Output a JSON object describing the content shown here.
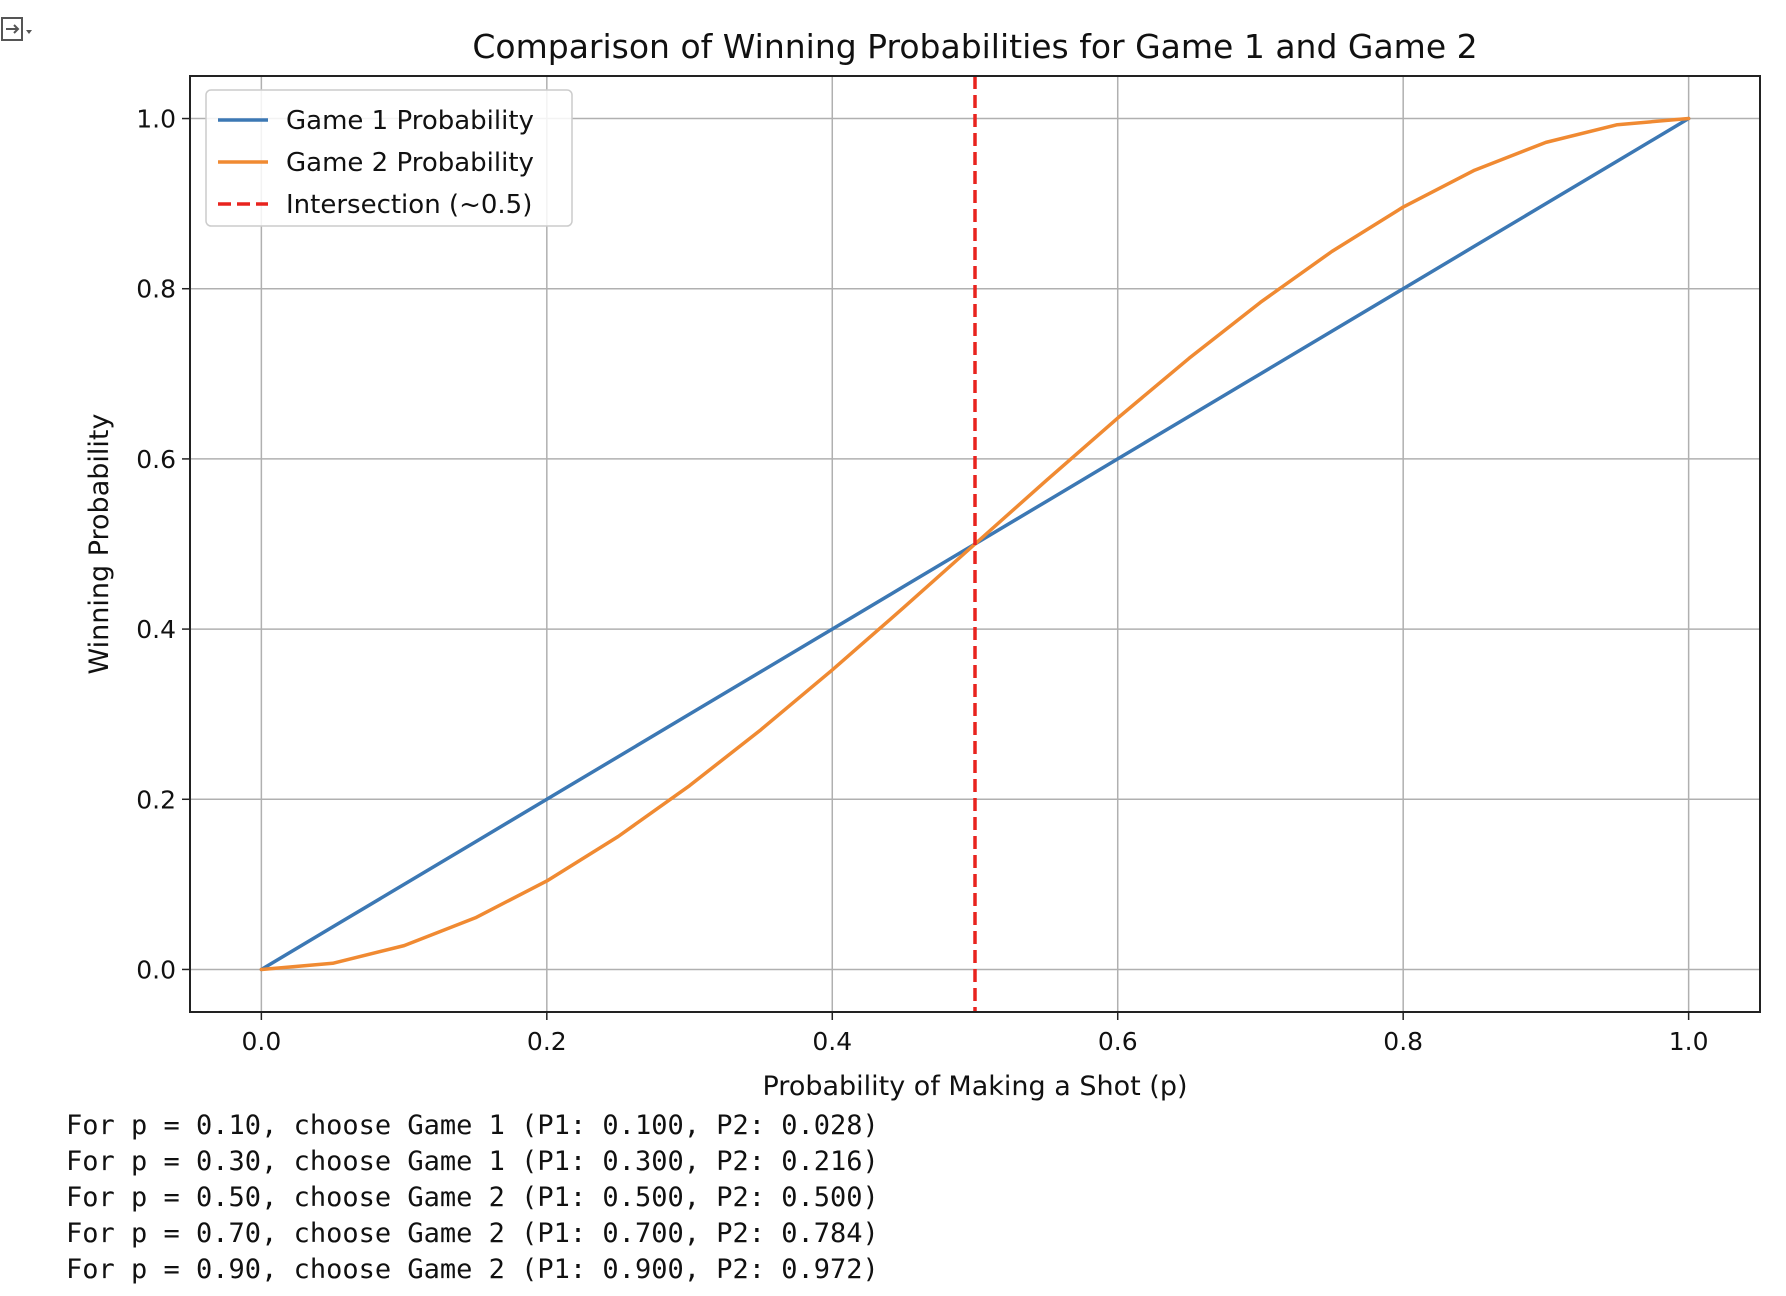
{
  "output_icon": "output-collapse-icon",
  "chart_data": {
    "type": "line",
    "title": "Comparison of Winning Probabilities for Game 1 and Game 2",
    "xlabel": "Probability of Making a Shot (p)",
    "ylabel": "Winning Probability",
    "xlim": [
      -0.05,
      1.05
    ],
    "ylim": [
      -0.05,
      1.05
    ],
    "xticks": [
      "0.0",
      "0.2",
      "0.4",
      "0.6",
      "0.8",
      "1.0"
    ],
    "yticks": [
      "0.0",
      "0.2",
      "0.4",
      "0.6",
      "0.8",
      "1.0"
    ],
    "grid": true,
    "legend_position": "top-left",
    "x": [
      0.0,
      0.05,
      0.1,
      0.15,
      0.2,
      0.25,
      0.3,
      0.35,
      0.4,
      0.45,
      0.5,
      0.55,
      0.6,
      0.65,
      0.7,
      0.75,
      0.8,
      0.85,
      0.9,
      0.95,
      1.0
    ],
    "series": [
      {
        "name": "Game 1 Probability",
        "color": "#3c78b4",
        "style": "solid",
        "values": [
          0.0,
          0.05,
          0.1,
          0.15,
          0.2,
          0.25,
          0.3,
          0.35,
          0.4,
          0.45,
          0.5,
          0.55,
          0.6,
          0.65,
          0.7,
          0.75,
          0.8,
          0.85,
          0.9,
          0.95,
          1.0
        ]
      },
      {
        "name": "Game 2 Probability",
        "color": "#f08a32",
        "style": "solid",
        "values": [
          0.0,
          0.00725,
          0.028,
          0.06075,
          0.104,
          0.15625,
          0.216,
          0.28175,
          0.352,
          0.42525,
          0.5,
          0.57475,
          0.648,
          0.71825,
          0.784,
          0.84375,
          0.896,
          0.93925,
          0.972,
          0.99275,
          1.0
        ]
      }
    ],
    "vline": {
      "name": "Intersection (~0.5)",
      "x": 0.5,
      "color": "#e8231e",
      "style": "dashed"
    }
  },
  "console_output": [
    "For p = 0.10, choose Game 1 (P1: 0.100, P2: 0.028)",
    "For p = 0.30, choose Game 1 (P1: 0.300, P2: 0.216)",
    "For p = 0.50, choose Game 2 (P1: 0.500, P2: 0.500)",
    "For p = 0.70, choose Game 2 (P1: 0.700, P2: 0.784)",
    "For p = 0.90, choose Game 2 (P1: 0.900, P2: 0.972)"
  ]
}
